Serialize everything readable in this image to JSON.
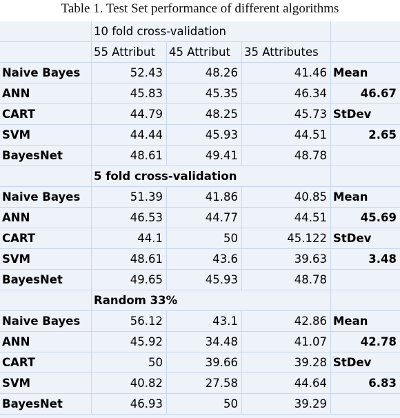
{
  "caption": "Table 1. Test Set performance of different algorithms",
  "headers": [
    "55 Attribut",
    "45 Attribut",
    "35 Attributes"
  ],
  "sections": [
    {
      "title": "10 fold cross-validation",
      "rows": [
        {
          "name": "Naive Bayes",
          "v": [
            "52.43",
            "48.26",
            "41.46"
          ],
          "stat": "Mean"
        },
        {
          "name": "ANN",
          "v": [
            "45.83",
            "45.35",
            "46.34"
          ],
          "stat": "46.67"
        },
        {
          "name": "CART",
          "v": [
            "44.79",
            "48.25",
            "45.73"
          ],
          "stat": "StDev"
        },
        {
          "name": "SVM",
          "v": [
            "44.44",
            "45.93",
            "44.51"
          ],
          "stat": "2.65"
        },
        {
          "name": "BayesNet",
          "v": [
            "48.61",
            "49.41",
            "48.78"
          ],
          "stat": ""
        }
      ]
    },
    {
      "title": "5 fold cross-validation",
      "rows": [
        {
          "name": "Naive Bayes",
          "v": [
            "51.39",
            "41.86",
            "40.85"
          ],
          "stat": "Mean"
        },
        {
          "name": "ANN",
          "v": [
            "46.53",
            "44.77",
            "44.51"
          ],
          "stat": "45.69"
        },
        {
          "name": "CART",
          "v": [
            "44.1",
            "50",
            "45.122"
          ],
          "stat": "StDev"
        },
        {
          "name": "SVM",
          "v": [
            "48.61",
            "43.6",
            "39.63"
          ],
          "stat": "3.48"
        },
        {
          "name": "BayesNet",
          "v": [
            "49.65",
            "45.93",
            "48.78"
          ],
          "stat": ""
        }
      ]
    },
    {
      "title": "Random 33%",
      "rows": [
        {
          "name": "Naive Bayes",
          "v": [
            "56.12",
            "43.1",
            "42.86"
          ],
          "stat": "Mean"
        },
        {
          "name": "ANN",
          "v": [
            "45.92",
            "34.48",
            "41.07"
          ],
          "stat": "42.78"
        },
        {
          "name": "CART",
          "v": [
            "50",
            "39.66",
            "39.28"
          ],
          "stat": "StDev"
        },
        {
          "name": "SVM",
          "v": [
            "40.82",
            "27.58",
            "44.64"
          ],
          "stat": "6.83"
        },
        {
          "name": "BayesNet",
          "v": [
            "46.93",
            "50",
            "39.29"
          ],
          "stat": ""
        }
      ]
    }
  ]
}
